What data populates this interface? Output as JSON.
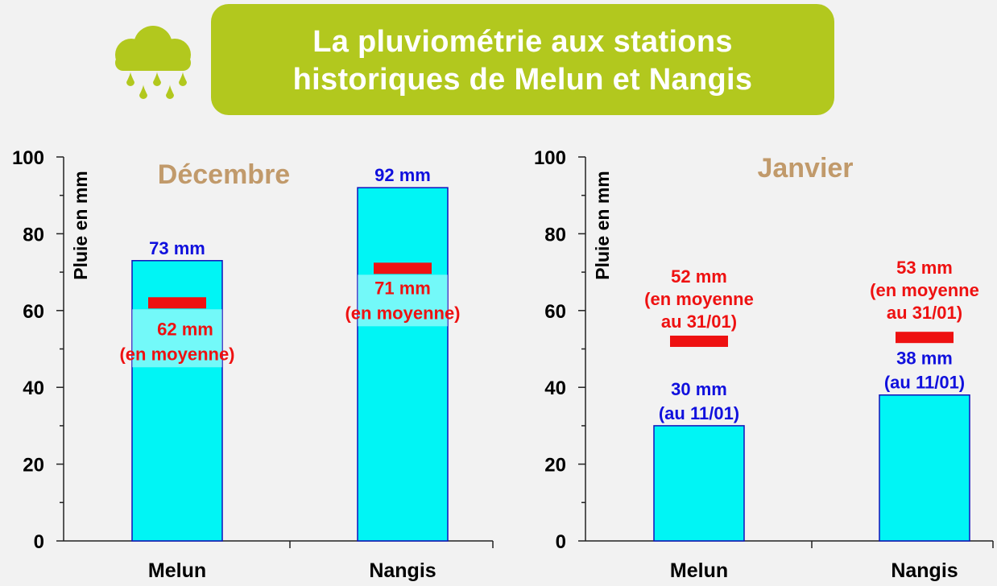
{
  "header": {
    "title_line1": "La pluviométrie aux stations",
    "title_line2": "historiques de Melun et Nangis"
  },
  "icons": {
    "weather": "rain-cloud-icon"
  },
  "colors": {
    "bar": "#00f5f5",
    "bar_border": "#1111bb",
    "average": "#ee1111",
    "blue_label": "#1010dd",
    "month": "#c19a6b",
    "title_bg": "#b2c81e"
  },
  "chart_data": [
    {
      "type": "bar",
      "title": "Décembre",
      "ylabel": "Pluie en mm",
      "ylim": [
        0,
        100
      ],
      "yticks": [
        0,
        20,
        40,
        60,
        80,
        100
      ],
      "categories": [
        "Melun",
        "Nangis"
      ],
      "series": [
        {
          "values": [
            73,
            92
          ],
          "labels": [
            [
              "73 mm"
            ],
            [
              "92 mm"
            ]
          ]
        },
        {
          "values": [
            62,
            71
          ],
          "labels": [
            [
              "62 mm",
              "(en moyenne)"
            ],
            [
              "71 mm",
              "(en moyenne)"
            ]
          ]
        }
      ]
    },
    {
      "type": "bar",
      "title": "Janvier",
      "ylabel": "Pluie en mm",
      "ylim": [
        0,
        100
      ],
      "yticks": [
        0,
        20,
        40,
        60,
        80,
        100
      ],
      "categories": [
        "Melun",
        "Nangis"
      ],
      "series": [
        {
          "values": [
            30,
            38
          ],
          "labels": [
            [
              "30 mm",
              "(au 11/01)"
            ],
            [
              "38 mm",
              "(au 11/01)"
            ]
          ]
        },
        {
          "values": [
            52,
            53
          ],
          "labels": [
            [
              "52 mm",
              "(en moyenne",
              "au 31/01)"
            ],
            [
              "53 mm",
              "(en moyenne",
              "au 31/01)"
            ]
          ]
        }
      ]
    }
  ]
}
